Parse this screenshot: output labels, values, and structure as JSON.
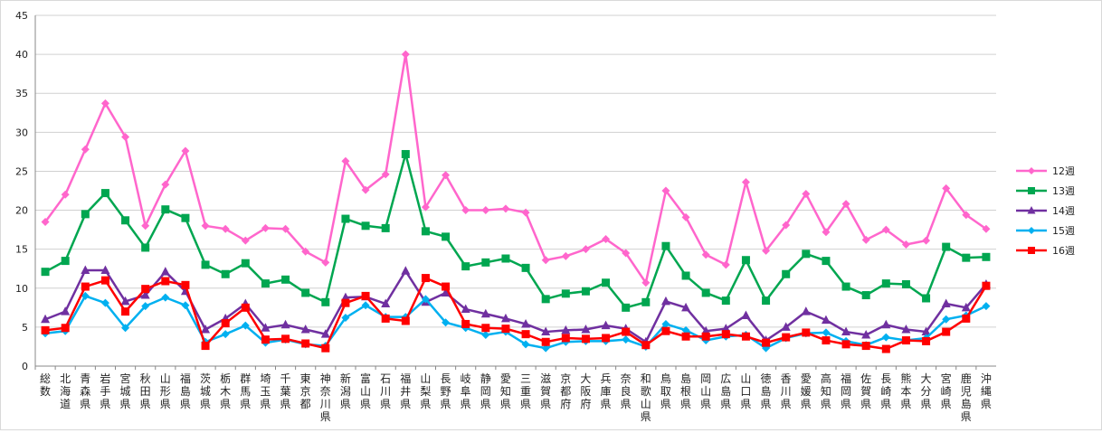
{
  "chart_data": {
    "type": "line",
    "title": "",
    "xlabel": "",
    "ylabel": "",
    "ylim": [
      0,
      45
    ],
    "yticks": [
      0,
      5,
      10,
      15,
      20,
      25,
      30,
      35,
      40,
      45
    ],
    "grid": "horizontal",
    "legend_position": "right",
    "categories": [
      "総数",
      "北海道",
      "青森県",
      "岩手県",
      "宮城県",
      "秋田県",
      "山形県",
      "福島県",
      "茨城県",
      "栃木県",
      "群馬県",
      "埼玉県",
      "千葉県",
      "東京都",
      "神奈川県",
      "新潟県",
      "富山県",
      "石川県",
      "福井県",
      "山梨県",
      "長野県",
      "岐阜県",
      "静岡県",
      "愛知県",
      "三重県",
      "滋賀県",
      "京都府",
      "大阪府",
      "兵庫県",
      "奈良県",
      "和歌山県",
      "鳥取県",
      "島根県",
      "岡山県",
      "広島県",
      "山口県",
      "徳島県",
      "香川県",
      "愛媛県",
      "高知県",
      "福岡県",
      "佐賀県",
      "長崎県",
      "熊本県",
      "大分県",
      "宮崎県",
      "鹿児島県",
      "沖縄県"
    ],
    "series": [
      {
        "name": "12週",
        "color": "#ff66cc",
        "marker": "diamond",
        "values": [
          18.5,
          22.0,
          27.8,
          33.7,
          29.4,
          18.0,
          23.3,
          27.6,
          18.0,
          17.6,
          16.1,
          17.7,
          17.6,
          14.7,
          13.3,
          26.3,
          22.6,
          24.6,
          40.0,
          20.4,
          24.5,
          20.0,
          20.0,
          20.2,
          19.7,
          13.6,
          14.1,
          15.0,
          16.3,
          14.5,
          10.7,
          22.5,
          19.1,
          14.3,
          13.0,
          23.6,
          14.8,
          18.1,
          22.1,
          17.2,
          20.8,
          16.2,
          17.5,
          15.6,
          16.1,
          22.8,
          19.4,
          17.6
        ]
      },
      {
        "name": "13週",
        "color": "#00a650",
        "marker": "square",
        "values": [
          12.1,
          13.5,
          19.5,
          22.2,
          18.7,
          15.2,
          20.1,
          19.0,
          13.0,
          11.8,
          13.2,
          10.6,
          11.1,
          9.4,
          8.2,
          18.9,
          18.0,
          17.7,
          27.2,
          17.3,
          16.6,
          12.8,
          13.3,
          13.8,
          12.6,
          8.6,
          9.3,
          9.6,
          10.7,
          7.5,
          8.2,
          15.4,
          11.6,
          9.4,
          8.4,
          13.6,
          8.4,
          11.8,
          14.4,
          13.5,
          10.2,
          9.1,
          10.6,
          10.5,
          8.7,
          15.3,
          13.9,
          14.0
        ]
      },
      {
        "name": "14週",
        "color": "#7030a0",
        "marker": "triangle",
        "values": [
          6.0,
          7.0,
          12.3,
          12.3,
          8.3,
          9.1,
          12.1,
          9.6,
          4.7,
          6.1,
          8.0,
          4.9,
          5.3,
          4.7,
          4.1,
          8.8,
          8.9,
          8.0,
          12.2,
          8.2,
          9.4,
          7.3,
          6.7,
          6.1,
          5.4,
          4.4,
          4.6,
          4.7,
          5.2,
          4.8,
          3.1,
          8.3,
          7.5,
          4.5,
          4.8,
          6.5,
          3.3,
          5.0,
          7.0,
          5.9,
          4.4,
          4.0,
          5.3,
          4.7,
          4.4,
          8.0,
          7.5,
          10.5
        ]
      },
      {
        "name": "15週",
        "color": "#00b0f0",
        "marker": "diamond",
        "values": [
          4.2,
          4.5,
          9.0,
          8.1,
          4.9,
          7.7,
          8.8,
          7.8,
          3.1,
          4.1,
          5.2,
          3.0,
          3.4,
          2.8,
          2.6,
          6.2,
          7.8,
          6.3,
          6.3,
          8.6,
          5.6,
          4.9,
          4.0,
          4.4,
          2.8,
          2.3,
          3.1,
          3.2,
          3.2,
          3.4,
          2.5,
          5.4,
          4.6,
          3.3,
          3.8,
          4.0,
          2.3,
          3.6,
          4.2,
          4.3,
          3.2,
          2.7,
          3.7,
          3.3,
          3.6,
          6.0,
          6.5,
          7.7
        ]
      },
      {
        "name": "16週",
        "color": "#ff0000",
        "marker": "square",
        "values": [
          4.6,
          4.9,
          10.2,
          11.0,
          7.0,
          9.9,
          10.9,
          10.4,
          2.6,
          5.5,
          7.5,
          3.4,
          3.5,
          2.9,
          2.3,
          8.1,
          9.0,
          6.1,
          5.8,
          11.3,
          10.2,
          5.4,
          4.9,
          4.8,
          4.1,
          3.1,
          3.6,
          3.5,
          3.6,
          4.4,
          2.7,
          4.5,
          3.8,
          3.8,
          4.1,
          3.8,
          3.0,
          3.7,
          4.3,
          3.3,
          2.8,
          2.6,
          2.2,
          3.3,
          3.2,
          4.4,
          6.1,
          10.3
        ]
      }
    ]
  }
}
